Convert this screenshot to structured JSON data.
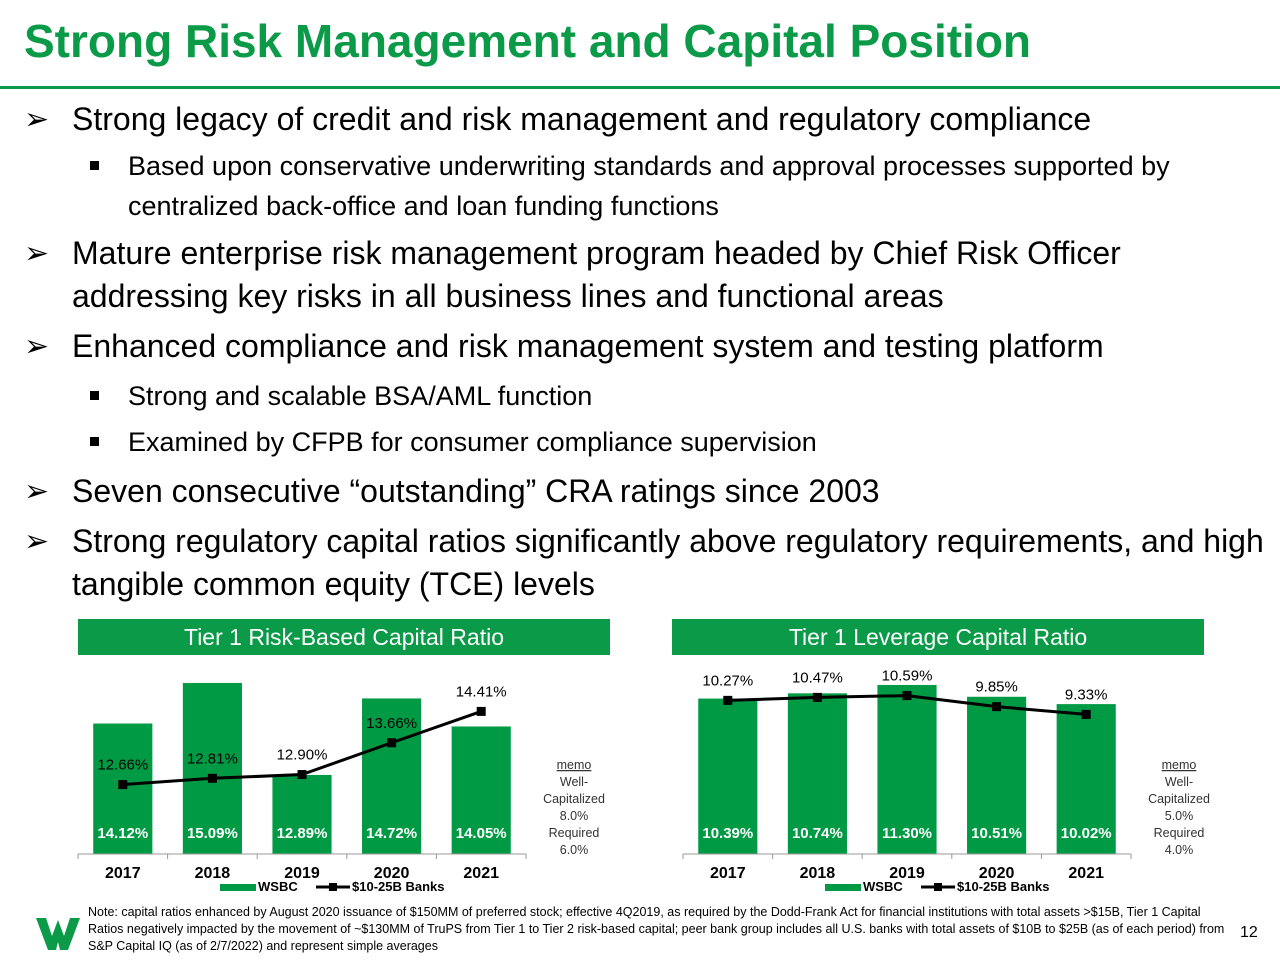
{
  "title": "Strong Risk Management and Capital Position",
  "bullets": [
    {
      "level": 1,
      "text": "Strong legacy of credit and risk management and regulatory compliance"
    },
    {
      "level": 2,
      "text": "Based upon conservative underwriting standards and approval processes supported by centralized back-office and loan funding functions"
    },
    {
      "level": 1,
      "text": "Mature enterprise risk management program headed by Chief Risk Officer addressing key risks in all business lines and functional areas"
    },
    {
      "level": 1,
      "text": "Enhanced compliance and risk management system and testing platform"
    },
    {
      "level": 2,
      "text": "Strong and scalable BSA/AML function"
    },
    {
      "level": 2,
      "text": "Examined by CFPB for consumer compliance supervision"
    },
    {
      "level": 1,
      "text": "Seven consecutive “outstanding” CRA ratings since 2003"
    },
    {
      "level": 1,
      "text": "Strong regulatory capital ratios significantly above regulatory requirements, and high tangible common equity (TCE) levels"
    }
  ],
  "colors": {
    "brand_green": "#0a9a48",
    "bar_green": "#009a44",
    "line": "#000000"
  },
  "chart_data": [
    {
      "type": "bar",
      "title": "Tier 1 Risk-Based Capital Ratio",
      "categories": [
        "2017",
        "2018",
        "2019",
        "2020",
        "2021"
      ],
      "series": [
        {
          "name": "WSBC",
          "kind": "bar",
          "values": [
            14.12,
            15.09,
            12.89,
            14.72,
            14.05
          ],
          "labels": [
            "14.12%",
            "15.09%",
            "12.89%",
            "14.72%",
            "14.05%"
          ]
        },
        {
          "name": "$10-25B Banks",
          "kind": "line",
          "values": [
            12.66,
            12.81,
            12.9,
            13.66,
            14.41
          ],
          "labels": [
            "12.66%",
            "12.81%",
            "12.90%",
            "13.66%",
            "14.41%"
          ]
        }
      ],
      "ylim": [
        11,
        15.4
      ],
      "grid": false,
      "legend": "bottom",
      "memo": [
        "memo",
        "Well-",
        "Capitalized",
        "8.0%",
        "Required",
        "6.0%"
      ]
    },
    {
      "type": "bar",
      "title": "Tier 1 Leverage Capital Ratio",
      "categories": [
        "2017",
        "2018",
        "2019",
        "2020",
        "2021"
      ],
      "series": [
        {
          "name": "WSBC",
          "kind": "bar",
          "values": [
            10.39,
            10.74,
            11.3,
            10.51,
            10.02
          ],
          "labels": [
            "10.39%",
            "10.74%",
            "11.30%",
            "10.51%",
            "10.02%"
          ]
        },
        {
          "name": "$10-25B Banks",
          "kind": "line",
          "values": [
            10.27,
            10.47,
            10.59,
            9.85,
            9.33
          ],
          "labels": [
            "10.27%",
            "10.47%",
            "10.59%",
            "9.85%",
            "9.33%"
          ]
        }
      ],
      "ylim": [
        0,
        12.3
      ],
      "grid": false,
      "legend": "bottom",
      "memo": [
        "memo",
        "Well-",
        "Capitalized",
        "5.0%",
        "Required",
        "4.0%"
      ]
    }
  ],
  "footnote": "Note: capital ratios enhanced by August 2020 issuance of $150MM of preferred stock; effective 4Q2019, as required by the Dodd-Frank Act for financial institutions with total assets >$15B, Tier 1 Capital Ratios negatively impacted by the movement of ~$130MM of TruPS from Tier 1 to Tier 2 risk-based capital; peer bank group includes all U.S. banks with total assets of $10B to $25B (as of each period) from S&P Capital IQ (as of 2/7/2022) and represent simple averages",
  "page_number": "12"
}
